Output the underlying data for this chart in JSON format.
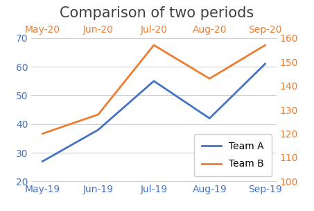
{
  "title": "Comparison of two periods",
  "x_bottom": [
    "May-19",
    "Jun-19",
    "Jul-19",
    "Aug-19",
    "Sep-19"
  ],
  "x_top": [
    "May-20",
    "Jun-20",
    "Jul-20",
    "Aug-20",
    "Sep-20"
  ],
  "team_a": [
    27,
    38,
    55,
    42,
    61
  ],
  "team_b_right": [
    120,
    128,
    157,
    143,
    157
  ],
  "team_a_color": "#4472C4",
  "team_b_color": "#ED7D31",
  "left_ylim": [
    20,
    70
  ],
  "right_ylim": [
    100,
    160
  ],
  "left_yticks": [
    20,
    30,
    40,
    50,
    60,
    70
  ],
  "right_yticks": [
    100,
    110,
    120,
    130,
    140,
    150,
    160
  ],
  "title_fontsize": 15,
  "label_fontsize": 10,
  "tick_fontsize": 10,
  "legend_team_a": "Team A",
  "legend_team_b": "Team B",
  "background_color": "#ffffff",
  "grid_color": "#d0d0d0",
  "spine_color": "#d0d0d0"
}
